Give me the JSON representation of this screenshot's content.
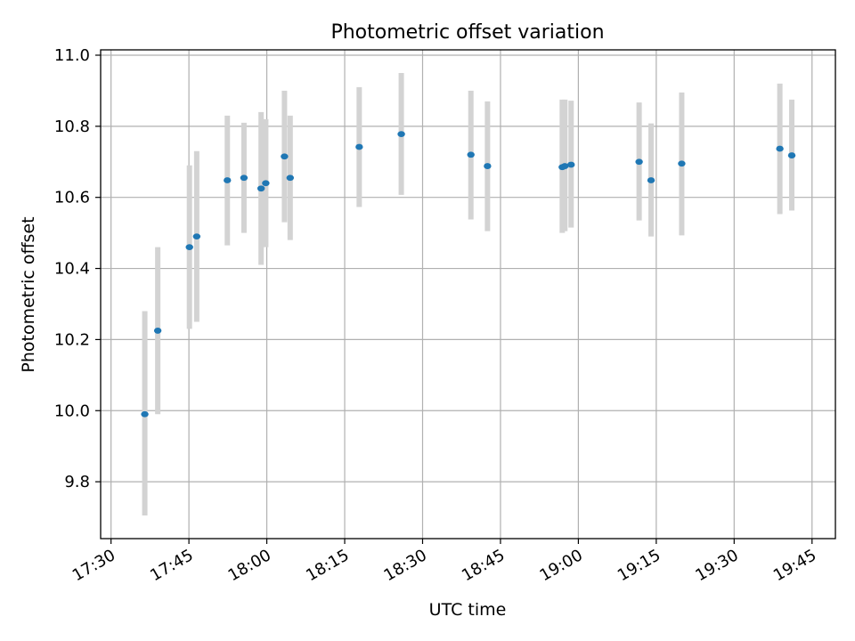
{
  "chart_data": {
    "type": "scatter",
    "title": "Photometric offset variation",
    "xlabel": "UTC time",
    "ylabel": "Photometric offset",
    "grid": true,
    "xlim_minutes": [
      1048,
      1189.5
    ],
    "ylim": [
      9.64,
      11.015
    ],
    "x_ticks": [
      {
        "minute": 1050,
        "label": "17:30"
      },
      {
        "minute": 1065,
        "label": "17:45"
      },
      {
        "minute": 1080,
        "label": "18:00"
      },
      {
        "minute": 1095,
        "label": "18:15"
      },
      {
        "minute": 1110,
        "label": "18:30"
      },
      {
        "minute": 1125,
        "label": "18:45"
      },
      {
        "minute": 1140,
        "label": "19:00"
      },
      {
        "minute": 1155,
        "label": "19:15"
      },
      {
        "minute": 1170,
        "label": "19:30"
      },
      {
        "minute": 1185,
        "label": "19:45"
      }
    ],
    "y_ticks": [
      9.8,
      10.0,
      10.2,
      10.4,
      10.6,
      10.8,
      11.0
    ],
    "colors": {
      "point": "#1f77b4",
      "errorbar": "#d3d3d3",
      "grid": "#b0b0b0",
      "axis": "#000000"
    },
    "series": [
      {
        "name": "offset",
        "points": [
          {
            "time": "17:36.5",
            "minute": 1056.5,
            "y": 9.99,
            "ylo": 9.705,
            "yhi": 10.28
          },
          {
            "time": "17:39.0",
            "minute": 1059.0,
            "y": 10.225,
            "ylo": 9.99,
            "yhi": 10.46
          },
          {
            "time": "17:45.1",
            "minute": 1065.1,
            "y": 10.46,
            "ylo": 10.23,
            "yhi": 10.69
          },
          {
            "time": "17:46.5",
            "minute": 1066.5,
            "y": 10.49,
            "ylo": 10.25,
            "yhi": 10.73
          },
          {
            "time": "17:52.4",
            "minute": 1072.4,
            "y": 10.648,
            "ylo": 10.465,
            "yhi": 10.83
          },
          {
            "time": "17:55.6",
            "minute": 1075.6,
            "y": 10.655,
            "ylo": 10.5,
            "yhi": 10.81
          },
          {
            "time": "17:58.9",
            "minute": 1078.9,
            "y": 10.625,
            "ylo": 10.41,
            "yhi": 10.84
          },
          {
            "time": "17:59.8",
            "minute": 1079.8,
            "y": 10.64,
            "ylo": 10.46,
            "yhi": 10.82
          },
          {
            "time": "18:03.4",
            "minute": 1083.4,
            "y": 10.715,
            "ylo": 10.53,
            "yhi": 10.9
          },
          {
            "time": "18:04.5",
            "minute": 1084.5,
            "y": 10.655,
            "ylo": 10.48,
            "yhi": 10.83
          },
          {
            "time": "18:17.8",
            "minute": 1097.8,
            "y": 10.742,
            "ylo": 10.573,
            "yhi": 10.91
          },
          {
            "time": "18:25.9",
            "minute": 1105.9,
            "y": 10.778,
            "ylo": 10.607,
            "yhi": 10.95
          },
          {
            "time": "18:39.3",
            "minute": 1119.3,
            "y": 10.72,
            "ylo": 10.538,
            "yhi": 10.9
          },
          {
            "time": "18:42.5",
            "minute": 1122.5,
            "y": 10.688,
            "ylo": 10.505,
            "yhi": 10.87
          },
          {
            "time": "18:56.9",
            "minute": 1136.9,
            "y": 10.685,
            "ylo": 10.5,
            "yhi": 10.875
          },
          {
            "time": "18:57.4",
            "minute": 1137.4,
            "y": 10.688,
            "ylo": 10.505,
            "yhi": 10.875
          },
          {
            "time": "18:58.6",
            "minute": 1138.6,
            "y": 10.692,
            "ylo": 10.515,
            "yhi": 10.872
          },
          {
            "time": "19:11.7",
            "minute": 1151.7,
            "y": 10.7,
            "ylo": 10.535,
            "yhi": 10.867
          },
          {
            "time": "19:14.0",
            "minute": 1154.0,
            "y": 10.648,
            "ylo": 10.49,
            "yhi": 10.808
          },
          {
            "time": "19:19.9",
            "minute": 1159.9,
            "y": 10.695,
            "ylo": 10.493,
            "yhi": 10.895
          },
          {
            "time": "19:38.8",
            "minute": 1178.8,
            "y": 10.737,
            "ylo": 10.553,
            "yhi": 10.92
          },
          {
            "time": "19:41.1",
            "minute": 1181.1,
            "y": 10.718,
            "ylo": 10.563,
            "yhi": 10.875
          }
        ]
      }
    ]
  }
}
